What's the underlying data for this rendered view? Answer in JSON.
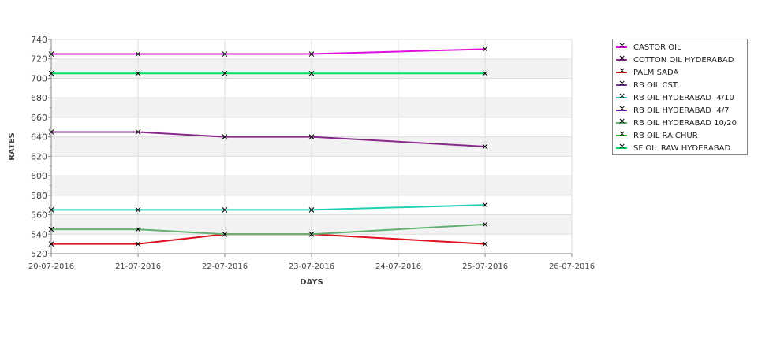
{
  "chart_data": {
    "type": "line",
    "title": "",
    "xlabel": "DAYS",
    "ylabel": "RATES",
    "ylim": [
      520,
      740
    ],
    "yticks": [
      520,
      540,
      560,
      580,
      600,
      620,
      640,
      660,
      680,
      700,
      720,
      740
    ],
    "x_ticks": [
      "20-07-2016",
      "21-07-2016",
      "22-07-2016",
      "23-07-2016",
      "24-07-2016",
      "25-07-2016",
      "26-07-2016"
    ],
    "grid": true,
    "legend_position": "right",
    "series": [
      {
        "name": "CASTOR OIL",
        "color": "#e010e0",
        "x": [
          0,
          1,
          2,
          3,
          5
        ],
        "values": [
          725,
          725,
          725,
          725,
          730
        ]
      },
      {
        "name": "COTTON OIL HYDERABAD",
        "color": "#86288a",
        "x": [
          0,
          1,
          2,
          3,
          5
        ],
        "values": [
          645,
          645,
          640,
          640,
          630
        ]
      },
      {
        "name": "PALM SADA",
        "color": "#e0101c",
        "x": [
          0,
          1,
          2,
          3,
          5
        ],
        "values": [
          530,
          530,
          540,
          540,
          530
        ]
      },
      {
        "name": "RB OIL CST",
        "color": "#7a3590",
        "x": [],
        "values": []
      },
      {
        "name": "RB OIL HYDERABAD  4/10",
        "color": "#20d0b0",
        "x": [
          0,
          1,
          2,
          3,
          5
        ],
        "values": [
          565,
          565,
          565,
          565,
          570
        ]
      },
      {
        "name": "RB OIL HYDERABAD  4/7",
        "color": "#6a20c0",
        "x": [],
        "values": []
      },
      {
        "name": "RB OIL HYDERABAD 10/20",
        "color": "#60b070",
        "x": [
          0,
          1,
          2,
          3,
          5
        ],
        "values": [
          545,
          545,
          540,
          540,
          550
        ]
      },
      {
        "name": "RB OIL RAICHUR",
        "color": "#10c020",
        "x": [],
        "values": []
      },
      {
        "name": "SF OIL RAW HYDERABAD",
        "color": "#00e060",
        "x": [
          0,
          1,
          2,
          3,
          5
        ],
        "values": [
          705,
          705,
          705,
          705,
          705
        ]
      }
    ]
  }
}
